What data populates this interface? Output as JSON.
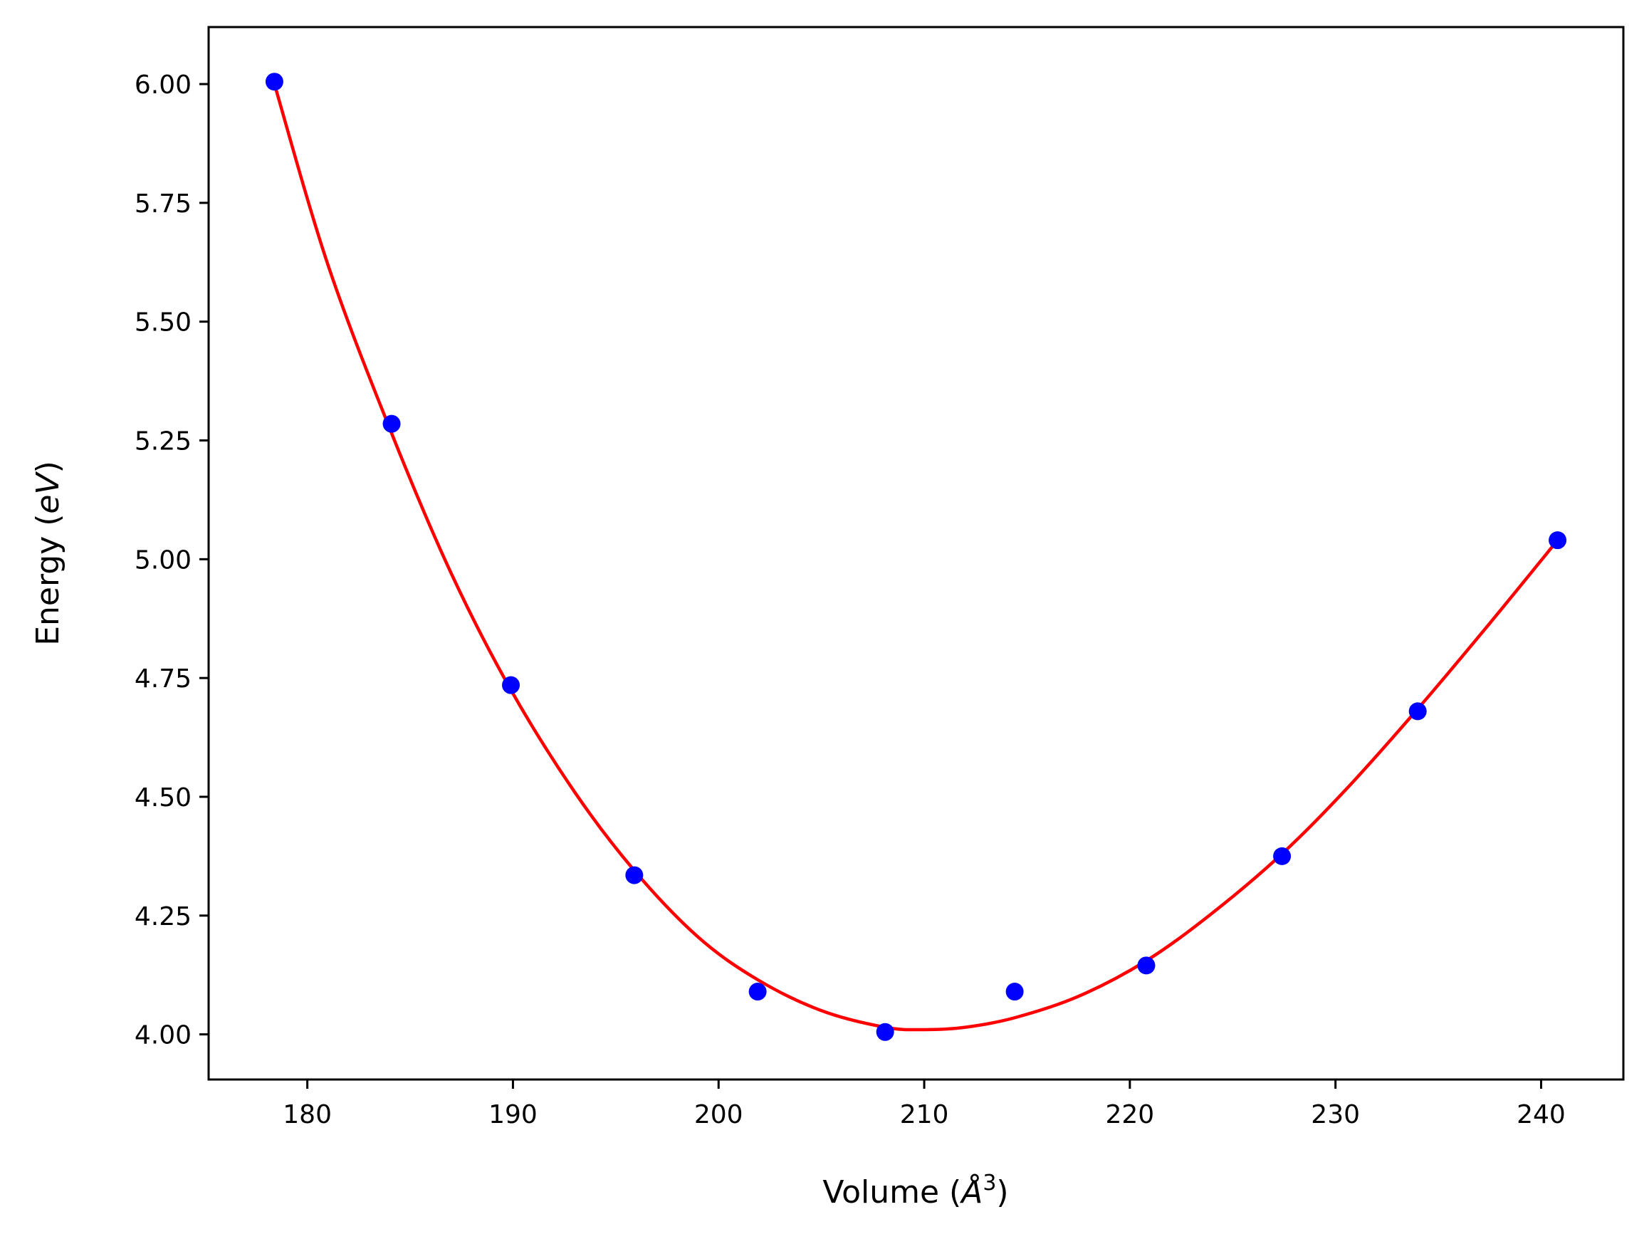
{
  "chart_data": {
    "type": "scatter",
    "title": "",
    "xlabel_main": "Volume (",
    "xlabel_unit": "Å",
    "xlabel_sup": "3",
    "xlabel_close": ")",
    "ylabel_main": "Energy (",
    "ylabel_unit": "eV",
    "ylabel_close": ")",
    "xlim": [
      175.2,
      244.0
    ],
    "ylim": [
      3.905,
      6.12
    ],
    "x_ticks": [
      180,
      190,
      200,
      210,
      220,
      230,
      240
    ],
    "x_tick_labels": [
      "180",
      "190",
      "200",
      "210",
      "220",
      "230",
      "240"
    ],
    "y_ticks": [
      4.0,
      4.25,
      4.5,
      4.75,
      5.0,
      5.25,
      5.5,
      5.75,
      6.0
    ],
    "y_tick_labels": [
      "4.00",
      "4.25",
      "4.50",
      "4.75",
      "5.00",
      "5.25",
      "5.50",
      "5.75",
      "6.00"
    ],
    "grid": false,
    "series": [
      {
        "kind": "points",
        "color": "#0000ff",
        "x": [
          178.4,
          184.1,
          189.9,
          195.9,
          201.9,
          208.1,
          214.4,
          220.8,
          227.4,
          234.0,
          240.8
        ],
        "y": [
          6.005,
          5.285,
          4.735,
          4.335,
          4.09,
          4.005,
          4.09,
          4.145,
          4.375,
          4.68,
          5.04
        ]
      },
      {
        "kind": "fit-curve",
        "color": "#ff0000",
        "x": [
          178.4,
          181.0,
          184.1,
          187.0,
          189.9,
          193.0,
          195.9,
          199.0,
          201.9,
          205.0,
          208.1,
          210.0,
          212.0,
          214.4,
          217.5,
          220.8,
          224.0,
          227.4,
          230.5,
          234.0,
          237.5,
          240.8
        ],
        "y": [
          6.0,
          5.62,
          5.265,
          4.97,
          4.725,
          4.51,
          4.345,
          4.205,
          4.115,
          4.05,
          4.015,
          4.01,
          4.015,
          4.035,
          4.08,
          4.155,
          4.255,
          4.38,
          4.515,
          4.685,
          4.865,
          5.04
        ]
      }
    ]
  }
}
